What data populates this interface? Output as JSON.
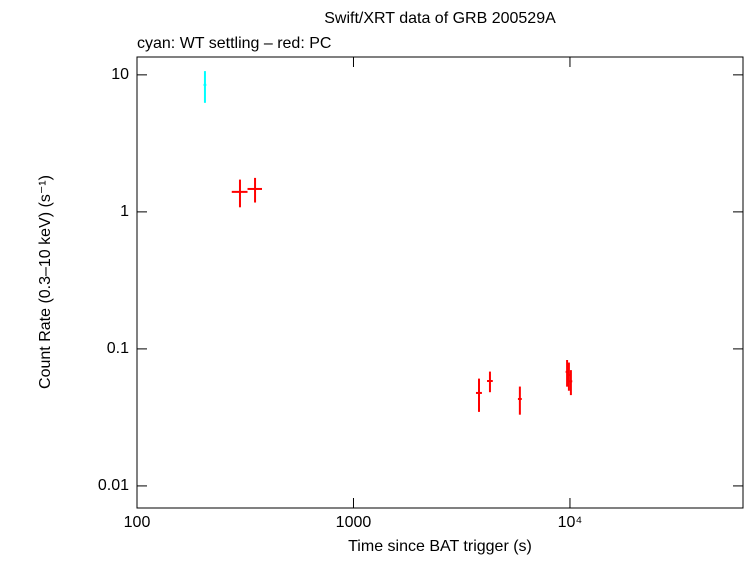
{
  "chart_data": {
    "type": "scatter",
    "title": "Swift/XRT data of GRB 200529A",
    "subtitle": "cyan: WT settling – red: PC",
    "x_label": "Time since BAT trigger (s)",
    "y_label": "Count Rate (0.3–10 keV) (s⁻¹)",
    "xscale": "log",
    "yscale": "log",
    "xlim": [
      100,
      63000
    ],
    "ylim": [
      0.0069,
      13.5
    ],
    "xticks": [
      100,
      1000,
      {
        "value": 10000,
        "label": "10⁴"
      }
    ],
    "yticks": [
      0.01,
      0.1,
      1,
      10
    ],
    "series": [
      {
        "color": "#00ffff",
        "x": [
          206
        ],
        "xerr": [
          3
        ],
        "values": [
          8.45
        ],
        "yerr": [
          2.2
        ]
      },
      {
        "color": "#ff0000",
        "x": [
          299,
          351,
          3800,
          4270,
          5870,
          9700,
          9890,
          10100
        ],
        "xerr": [
          25,
          27,
          120,
          130,
          120,
          150,
          150,
          150
        ],
        "values": [
          1.4,
          1.47,
          0.0477,
          0.0583,
          0.0431,
          0.068,
          0.0645,
          0.058
        ],
        "yerr": [
          0.32,
          0.3,
          0.013,
          0.01,
          0.01,
          0.015,
          0.015,
          0.012
        ]
      }
    ]
  }
}
